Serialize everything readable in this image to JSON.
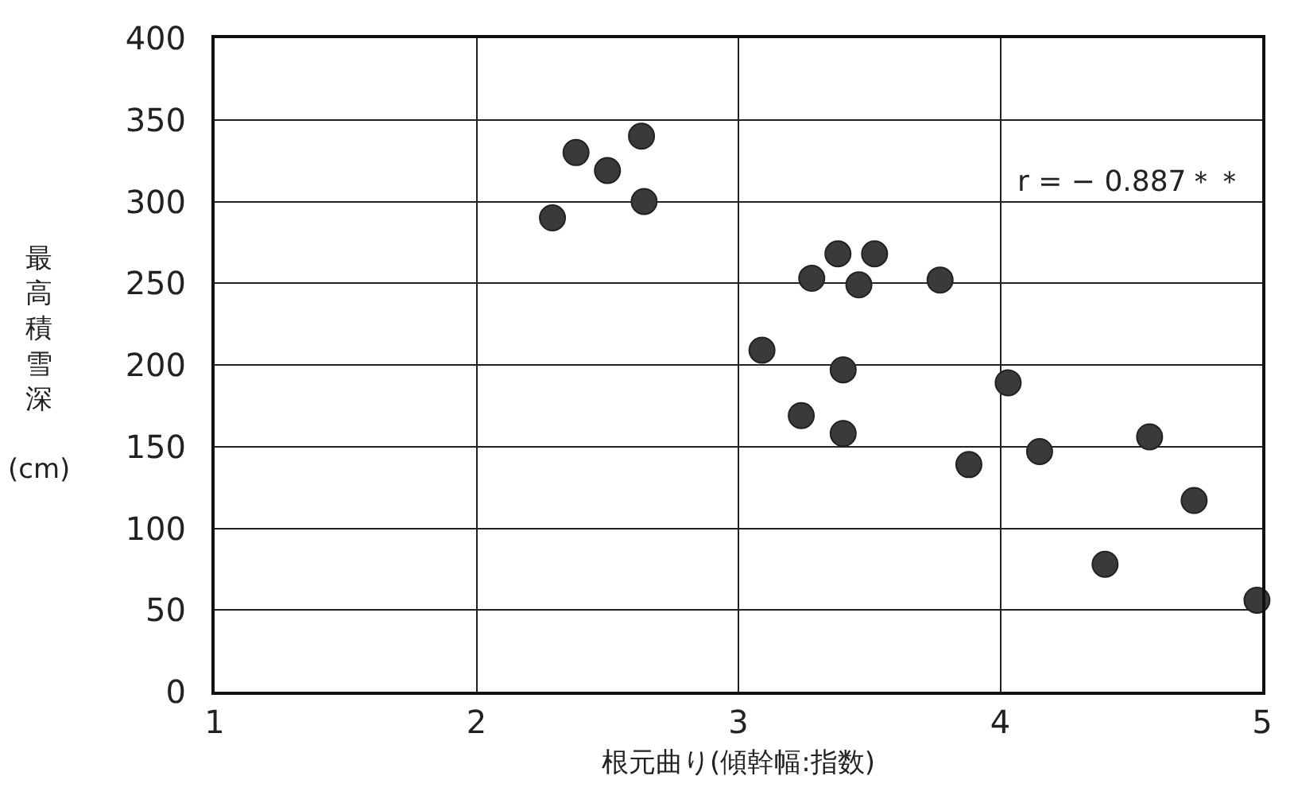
{
  "chart_data": {
    "type": "scatter",
    "xlabel": "根元曲り(傾幹幅:指数)",
    "ylabel": "最高積雪深 (cm)",
    "x": [
      2.29,
      2.38,
      2.5,
      2.63,
      2.64,
      3.09,
      3.24,
      3.28,
      3.38,
      3.4,
      3.4,
      3.46,
      3.52,
      3.77,
      3.88,
      4.03,
      4.15,
      4.4,
      4.57,
      4.74,
      4.98
    ],
    "values": [
      290,
      330,
      319,
      340,
      300,
      209,
      169,
      253,
      268,
      158,
      197,
      249,
      268,
      252,
      139,
      189,
      147,
      78,
      156,
      117,
      56
    ],
    "color": "#3a3a3a",
    "marker": "circle",
    "xlim": [
      1,
      5
    ],
    "xticks": [
      1,
      2,
      3,
      4,
      5
    ],
    "ylim": [
      0,
      400
    ],
    "yticks": [
      0,
      50,
      100,
      150,
      200,
      250,
      300,
      350,
      400
    ],
    "grid": true,
    "legend": false,
    "annotations": [
      "r = − 0.887＊＊"
    ]
  }
}
